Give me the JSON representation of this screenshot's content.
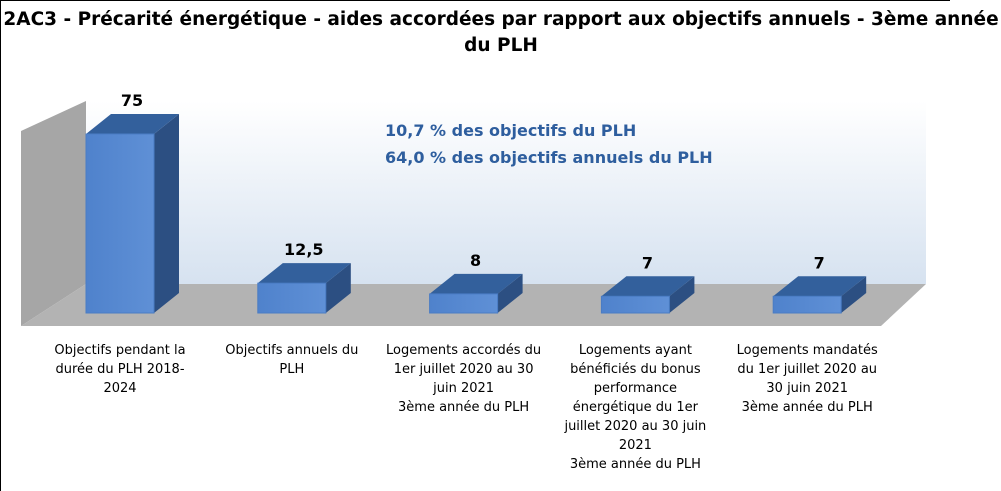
{
  "chart_data": {
    "type": "bar",
    "title": "2AC3 - Précarité énergétique - aides accordées par rapport aux objectifs annuels - 3ème année du PLH",
    "categories": [
      "Objectifs pendant la durée du PLH 2018-2024",
      "Objectifs annuels du PLH",
      "Logements accordés du 1er juillet 2020 au 30 juin 2021\n3ème année du PLH",
      "Logements ayant bénéficiés du bonus performance énergétique du 1er juillet 2020 au 30 juin 2021\n3ème année du PLH",
      "Logements mandatés du 1er juillet 2020 au 30 juin 2021\n3ème année du PLH"
    ],
    "values": [
      75,
      12.5,
      8,
      7,
      7
    ],
    "value_labels": [
      "75",
      "12,5",
      "8",
      "7",
      "7"
    ],
    "color": "#4a7cc4",
    "annotations": [
      "10,7 % des objectifs du PLH",
      "64,0 % des objectifs annuels du PLH"
    ]
  }
}
